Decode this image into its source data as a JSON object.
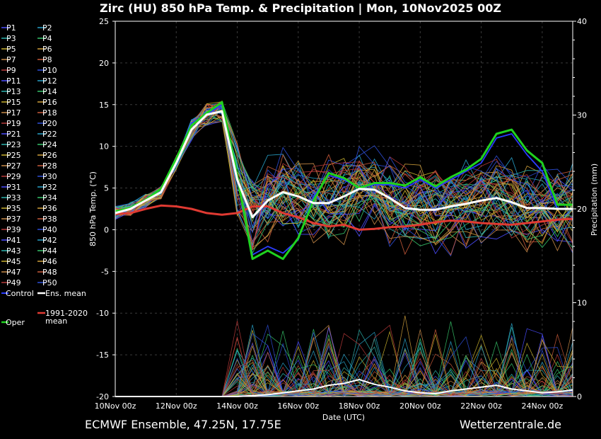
{
  "title": "Zirc  (HU)  850 hPa Temp. & Precipitation | Mon, 10Nov2025 00Z",
  "footer_left": "ECMWF Ensemble, 47.25N, 17.75E",
  "footer_right": "Wetterzentrale.de",
  "chart_data": {
    "type": "line",
    "title": "Zirc  (HU)  850 hPa Temp. & Precipitation | Mon, 10Nov2025 00Z",
    "xlabel": "Date (UTC)",
    "ylabel": "850 hPa Temp. (°C)",
    "y2label": "Precipitation (mm)",
    "ylim": [
      -20,
      25
    ],
    "y2lim": [
      0,
      40
    ],
    "yticks": [
      "25",
      "20",
      "15",
      "10",
      "5",
      "0",
      "-5",
      "-10",
      "-15",
      "-20"
    ],
    "y2ticks": [
      "40",
      "30",
      "20",
      "10",
      "0"
    ],
    "xticks": [
      "10Nov 00z",
      "12Nov 00z",
      "14Nov 00z",
      "16Nov 00z",
      "18Nov 00z",
      "20Nov 00z",
      "22Nov 00z",
      "24Nov 00z"
    ],
    "grid": true,
    "legend_position": "left",
    "colors": {
      "control": "#2a3cff",
      "ens_mean": "#ffffff",
      "oper": "#1fd21f",
      "clim": "#e03a32",
      "members": [
        "#4a4cff",
        "#27a1c8",
        "#2bb3ad",
        "#36c46a",
        "#c9b12d",
        "#d0a03b",
        "#c98b48",
        "#c85a3a",
        "#b83a3a",
        "#2e4fd8"
      ]
    },
    "legend": [
      "P1",
      "P2",
      "P3",
      "P4",
      "P5",
      "P6",
      "P7",
      "P8",
      "P9",
      "P10",
      "P11",
      "P12",
      "P13",
      "P14",
      "P15",
      "P16",
      "P17",
      "P18",
      "P19",
      "P20",
      "P21",
      "P22",
      "P23",
      "P24",
      "P25",
      "P26",
      "P27",
      "P28",
      "P29",
      "P30",
      "P31",
      "P32",
      "P33",
      "P34",
      "P35",
      "P36",
      "P37",
      "P38",
      "P39",
      "P40",
      "P41",
      "P42",
      "P43",
      "P44",
      "P45",
      "P46",
      "P47",
      "P48",
      "P49",
      "P50",
      "Control",
      "Ens. mean",
      "1991-2020 mean",
      "Oper"
    ],
    "hours": [
      0,
      12,
      24,
      36,
      48,
      60,
      72,
      84,
      96,
      108,
      120,
      132,
      144,
      156,
      168,
      180,
      192,
      204,
      216,
      228,
      240,
      252,
      264,
      276,
      288,
      300,
      312,
      324,
      336,
      348,
      360
    ],
    "series": [
      {
        "name": "Ens. mean",
        "values": [
          2.0,
          2.5,
          3.5,
          4.5,
          8.0,
          12.0,
          13.8,
          14.2,
          6.0,
          1.5,
          3.5,
          4.5,
          4.0,
          3.2,
          3.2,
          4.0,
          4.9,
          4.8,
          3.8,
          2.6,
          2.4,
          2.4,
          2.8,
          3.1,
          3.5,
          3.8,
          3.3,
          2.6,
          2.6,
          2.5,
          2.5
        ]
      },
      {
        "name": "Oper",
        "values": [
          2.2,
          2.6,
          3.6,
          4.9,
          8.5,
          12.5,
          14.0,
          15.3,
          6.5,
          -3.5,
          -2.5,
          -3.5,
          -1.0,
          3.5,
          6.8,
          6.2,
          5.0,
          5.6,
          5.6,
          5.3,
          6.3,
          5.2,
          6.3,
          7.2,
          8.5,
          11.5,
          12.0,
          9.5,
          8.0,
          3.0,
          3.0
        ]
      },
      {
        "name": "Control",
        "values": [
          2.2,
          2.6,
          3.6,
          4.9,
          8.5,
          12.8,
          13.8,
          15.0,
          6.5,
          -3.0,
          -2.0,
          -2.8,
          -1.2,
          4.0,
          6.5,
          6.0,
          5.0,
          5.4,
          5.4,
          5.0,
          6.0,
          5.0,
          6.0,
          7.0,
          8.0,
          11.0,
          11.5,
          9.0,
          7.0,
          2.5,
          2.5
        ]
      },
      {
        "name": "1991-2020 mean",
        "values": [
          1.9,
          2.0,
          2.5,
          2.9,
          2.8,
          2.5,
          2.0,
          1.8,
          2.0,
          2.8,
          2.8,
          2.0,
          1.5,
          0.8,
          0.4,
          0.6,
          0.0,
          0.1,
          0.3,
          0.4,
          0.6,
          0.9,
          1.1,
          1.0,
          0.8,
          0.7,
          0.6,
          0.8,
          1.0,
          1.2,
          1.3
        ]
      }
    ],
    "precip_mean": [
      0,
      0,
      0,
      0,
      0,
      0,
      0,
      0,
      0,
      0.1,
      0.2,
      0.4,
      0.6,
      0.8,
      1.2,
      1.4,
      1.8,
      1.3,
      1.0,
      0.6,
      0.4,
      0.3,
      0.6,
      0.8,
      1.0,
      1.2,
      0.8,
      0.6,
      0.4,
      0.5,
      0.7
    ]
  }
}
